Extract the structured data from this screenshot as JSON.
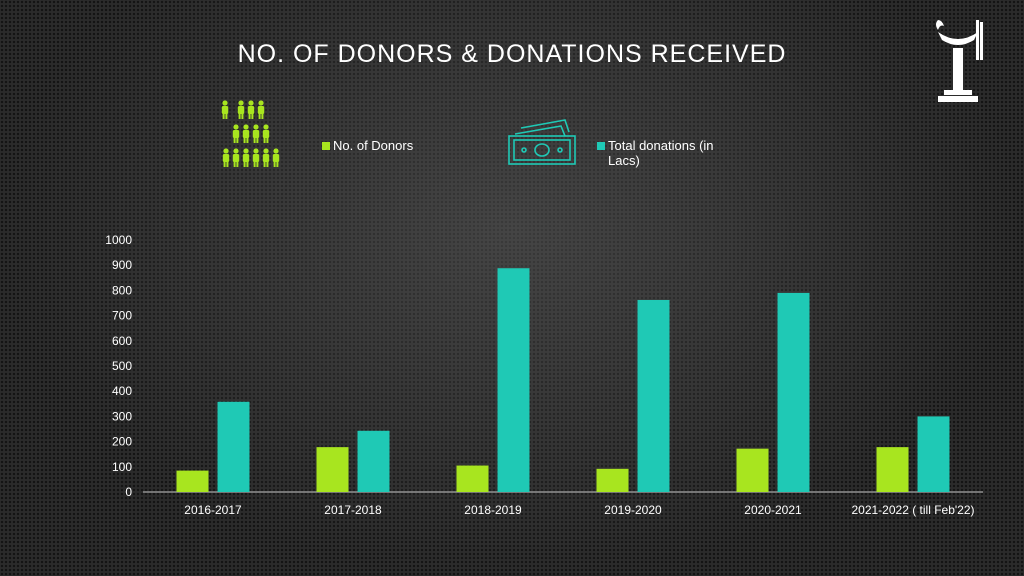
{
  "title": "NO. OF DONORS & DONATIONS RECEIVED",
  "colors": {
    "donors": "#a8e51f",
    "donations": "#1fc9b5",
    "axis": "#bfbfbf",
    "text": "#ffffff"
  },
  "icons": {
    "logo": "lamp-logo-icon",
    "donors": "people-group-icon",
    "donations": "banknote-icon"
  },
  "chart_data": {
    "type": "bar",
    "categories": [
      "2016-2017",
      "2017-2018",
      "2018-2019",
      "2019-2020",
      "2020-2021",
      "2021-2022 ( till Feb'22)"
    ],
    "series": [
      {
        "name": "No. of Donors",
        "values": [
          85,
          178,
          105,
          92,
          172,
          178
        ]
      },
      {
        "name": "Total donations (in Lacs)",
        "values": [
          358,
          243,
          888,
          762,
          790,
          300
        ]
      }
    ],
    "yticks": [
      0,
      100,
      200,
      300,
      400,
      500,
      600,
      700,
      800,
      900,
      1000
    ],
    "ylim": [
      0,
      1000
    ],
    "grid": false,
    "legend_position": "top"
  }
}
